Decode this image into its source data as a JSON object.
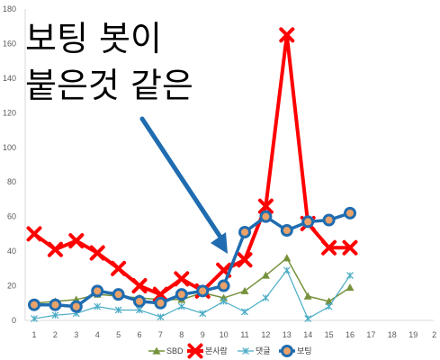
{
  "chart_data": {
    "type": "line",
    "x": [
      1,
      2,
      3,
      4,
      5,
      6,
      7,
      8,
      9,
      10,
      11,
      12,
      13,
      14,
      15,
      16
    ],
    "x_ticks": [
      "1",
      "2",
      "3",
      "4",
      "5",
      "6",
      "7",
      "8",
      "9",
      "10",
      "11",
      "12",
      "13",
      "14",
      "15",
      "16",
      "17",
      "18",
      "19",
      "2"
    ],
    "y_ticks": [
      "0",
      "20",
      "40",
      "60",
      "80",
      "100",
      "120",
      "140",
      "160",
      "180"
    ],
    "ylim": [
      0,
      180
    ],
    "series": [
      {
        "name": "SBD",
        "color": "#76923c",
        "marker": "triangle",
        "values": [
          10,
          11,
          12,
          15,
          14,
          13,
          12,
          12,
          16,
          13,
          17,
          26,
          36,
          14,
          11,
          19
        ]
      },
      {
        "name": "본사람",
        "color": "#ff0000",
        "marker": "x",
        "values": [
          50,
          41,
          46,
          39,
          30,
          20,
          15,
          24,
          17,
          29,
          35,
          66,
          165,
          56,
          42,
          42
        ]
      },
      {
        "name": "댓글",
        "color": "#4bacc6",
        "marker": "star",
        "values": [
          1,
          3,
          4,
          8,
          6,
          6,
          2,
          8,
          4,
          11,
          5,
          13,
          29,
          1,
          8,
          26
        ]
      },
      {
        "name": "보팅",
        "color": "#1f6cb0",
        "marker": "circle",
        "values": [
          9,
          9,
          8,
          17,
          15,
          11,
          10,
          15,
          17,
          20,
          51,
          60,
          52,
          57,
          58,
          62
        ]
      }
    ],
    "annotation": {
      "line1": "보팅 봇이",
      "line2": "붙은것 같은"
    },
    "grid": false,
    "legend_position": "bottom"
  }
}
